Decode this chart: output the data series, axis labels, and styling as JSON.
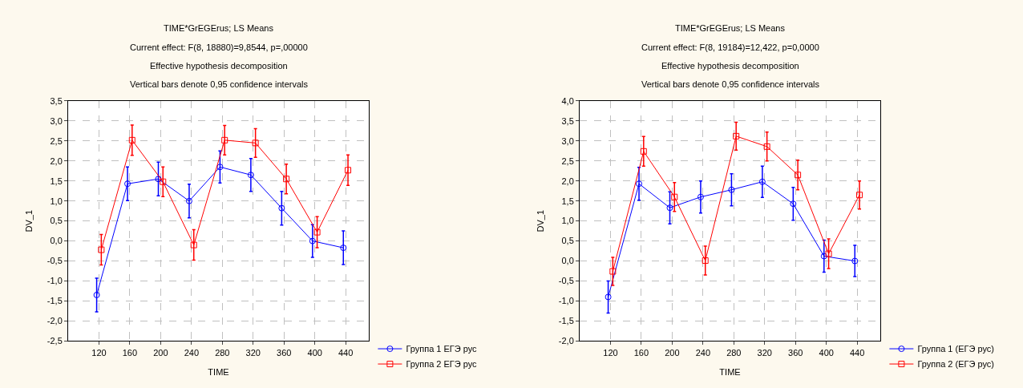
{
  "chart_data": [
    {
      "type": "line",
      "title": "TIME*GrEGErus; LS Means",
      "subtitle": "Current effect: F(8, 18880)=9,8544, p=,00000\nEffective hypothesis decomposition\nVertical bars denote 0,95 confidence intervals",
      "xlabel": "TIME",
      "ylabel": "DV_1",
      "xlim": [
        80,
        470
      ],
      "xticks": [
        120,
        160,
        200,
        240,
        280,
        320,
        360,
        400,
        440
      ],
      "ylim": [
        -2.5,
        3.5
      ],
      "yticks": [
        {
          "value": -2.5,
          "label": "-2,5"
        },
        {
          "value": -2,
          "label": "-2,0"
        },
        {
          "value": -1.5,
          "label": "-1,5"
        },
        {
          "value": -1,
          "label": "-1,0"
        },
        {
          "value": -0.5,
          "label": "-0,5"
        },
        {
          "value": 0,
          "label": "0,0"
        },
        {
          "value": 0.5,
          "label": "0,5"
        },
        {
          "value": 1,
          "label": "1,0"
        },
        {
          "value": 1.5,
          "label": "1,5"
        },
        {
          "value": 2,
          "label": "2,0"
        },
        {
          "value": 2.5,
          "label": "2,5"
        },
        {
          "value": 3,
          "label": "3,0"
        },
        {
          "value": 3.5,
          "label": "3,5"
        }
      ],
      "grid": true,
      "legend": "bottom right",
      "line_style": "solid",
      "series": [
        {
          "name": "Группа 1 ЕГЭ рус",
          "color": "#0000ff",
          "marker": "circle",
          "x": [
            117,
            157,
            197,
            237,
            277,
            317,
            357,
            397,
            437
          ],
          "values": [
            -1.35,
            1.43,
            1.55,
            1.0,
            1.85,
            1.65,
            0.82,
            0.0,
            -0.17
          ],
          "errors": [
            0.42,
            0.42,
            0.42,
            0.42,
            0.4,
            0.41,
            0.42,
            0.41,
            0.42
          ]
        },
        {
          "name": "Группа 2 ЕГЭ рус",
          "color": "#ff0000",
          "marker": "square",
          "x": [
            123,
            163,
            203,
            243,
            283,
            323,
            363,
            403,
            443
          ],
          "values": [
            -0.22,
            2.52,
            1.48,
            -0.1,
            2.52,
            2.45,
            1.55,
            0.22,
            1.77
          ],
          "errors": [
            0.38,
            0.38,
            0.37,
            0.38,
            0.37,
            0.36,
            0.37,
            0.39,
            0.38
          ]
        }
      ]
    },
    {
      "type": "line",
      "title": "TIME*GrEGErus; LS Means",
      "subtitle": "Current effect: F(8, 19184)=12,422, p=0,0000\nEffective hypothesis decomposition\nVertical bars denote 0,95 confidence intervals",
      "xlabel": "TIME",
      "ylabel": "DV_1",
      "xlim": [
        80,
        470
      ],
      "xticks": [
        120,
        160,
        200,
        240,
        280,
        320,
        360,
        400,
        440
      ],
      "ylim": [
        -2,
        4
      ],
      "yticks": [
        {
          "value": -2,
          "label": "-2,0"
        },
        {
          "value": -1.5,
          "label": "-1,5"
        },
        {
          "value": -1,
          "label": "-1,0"
        },
        {
          "value": -0.5,
          "label": "-0,5"
        },
        {
          "value": 0,
          "label": "0,0"
        },
        {
          "value": 0.5,
          "label": "0,5"
        },
        {
          "value": 1,
          "label": "1,0"
        },
        {
          "value": 1.5,
          "label": "1,5"
        },
        {
          "value": 2,
          "label": "2,0"
        },
        {
          "value": 2.5,
          "label": "2,5"
        },
        {
          "value": 3,
          "label": "3,0"
        },
        {
          "value": 3.5,
          "label": "3,5"
        },
        {
          "value": 4,
          "label": "4,0"
        }
      ],
      "grid": true,
      "legend": "bottom right",
      "line_style": "solid",
      "series": [
        {
          "name": "Группа 1 (ЕГЭ рус)",
          "color": "#0000ff",
          "marker": "circle",
          "x": [
            117,
            157,
            197,
            237,
            277,
            317,
            357,
            397,
            437
          ],
          "values": [
            -0.9,
            1.93,
            1.33,
            1.6,
            1.78,
            1.98,
            1.43,
            0.12,
            0.0
          ],
          "errors": [
            0.4,
            0.41,
            0.4,
            0.4,
            0.4,
            0.39,
            0.41,
            0.4,
            0.39
          ]
        },
        {
          "name": "Группа 2 (ЕГЭ рус)",
          "color": "#ff0000",
          "marker": "square",
          "x": [
            123,
            163,
            203,
            243,
            283,
            323,
            363,
            403,
            443
          ],
          "values": [
            -0.26,
            2.74,
            1.6,
            0.01,
            3.12,
            2.86,
            2.15,
            0.18,
            1.65
          ],
          "errors": [
            0.35,
            0.37,
            0.36,
            0.36,
            0.35,
            0.36,
            0.37,
            0.37,
            0.35
          ]
        }
      ]
    }
  ]
}
